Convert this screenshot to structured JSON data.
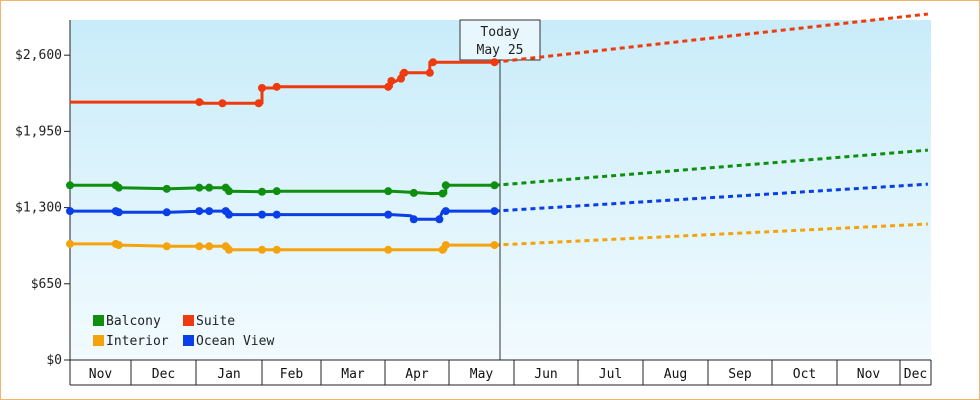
{
  "chart_data": {
    "type": "line",
    "title": "",
    "xlabel": "",
    "ylabel": "",
    "ylim": [
      0,
      2900
    ],
    "yticks": [
      "$0",
      "$650",
      "$1,300",
      "$1,950",
      "$2,600"
    ],
    "ytick_values": [
      0,
      650,
      1300,
      1950,
      2600
    ],
    "months": [
      "Nov",
      "Dec",
      "Jan",
      "Feb",
      "Mar",
      "Apr",
      "May",
      "Jun",
      "Jul",
      "Aug",
      "Sep",
      "Oct",
      "Nov",
      "Dec"
    ],
    "today": {
      "line1": "Today",
      "line2": "May 25"
    },
    "grid": false,
    "legend_position": "bottom-left",
    "series": [
      {
        "name": "Balcony",
        "color": "#0f8f0f",
        "points": [
          [
            0,
            1490
          ],
          [
            0.8,
            1490
          ],
          [
            0.8,
            1470
          ],
          [
            1.6,
            1460
          ],
          [
            2.1,
            1470
          ],
          [
            2.5,
            1470
          ],
          [
            2.5,
            1440
          ],
          [
            3.0,
            1435
          ],
          [
            3.25,
            1440
          ],
          [
            5.1,
            1440
          ],
          [
            5.4,
            1430
          ],
          [
            5.7,
            1420
          ],
          [
            5.95,
            1420
          ],
          [
            5.95,
            1490
          ],
          [
            6.7,
            1490
          ]
        ],
        "markers": [
          [
            0,
            1490
          ],
          [
            0.75,
            1490
          ],
          [
            0.8,
            1470
          ],
          [
            1.55,
            1460
          ],
          [
            2.05,
            1470
          ],
          [
            2.2,
            1470
          ],
          [
            2.45,
            1470
          ],
          [
            2.5,
            1440
          ],
          [
            3.0,
            1435
          ],
          [
            3.25,
            1440
          ],
          [
            5.05,
            1440
          ],
          [
            5.45,
            1425
          ],
          [
            5.9,
            1420
          ],
          [
            5.95,
            1490
          ],
          [
            6.7,
            1490
          ]
        ],
        "forecast": [
          [
            6.7,
            1490
          ],
          [
            13.9,
            1790
          ]
        ]
      },
      {
        "name": "Suite",
        "color": "#ee3a0c",
        "points": [
          [
            0,
            2200
          ],
          [
            2.1,
            2200
          ],
          [
            2.1,
            2190
          ],
          [
            2.6,
            2190
          ],
          [
            3.0,
            2190
          ],
          [
            3.0,
            2320
          ],
          [
            3.2,
            2320
          ],
          [
            3.25,
            2330
          ],
          [
            5.1,
            2330
          ],
          [
            5.1,
            2360
          ],
          [
            5.25,
            2400
          ],
          [
            5.25,
            2450
          ],
          [
            5.7,
            2450
          ],
          [
            5.7,
            2540
          ],
          [
            6.7,
            2540
          ]
        ],
        "markers": [
          [
            2.05,
            2200
          ],
          [
            2.4,
            2190
          ],
          [
            2.95,
            2190
          ],
          [
            3.0,
            2320
          ],
          [
            3.25,
            2330
          ],
          [
            5.05,
            2330
          ],
          [
            5.1,
            2380
          ],
          [
            5.25,
            2400
          ],
          [
            5.3,
            2450
          ],
          [
            5.7,
            2450
          ],
          [
            5.75,
            2540
          ],
          [
            6.7,
            2540
          ]
        ],
        "forecast": [
          [
            6.7,
            2540
          ],
          [
            13.9,
            3090
          ]
        ]
      },
      {
        "name": "Ocean View",
        "color": "#0a3ee6",
        "points": [
          [
            0,
            1270
          ],
          [
            0.8,
            1270
          ],
          [
            0.8,
            1260
          ],
          [
            1.6,
            1260
          ],
          [
            2.1,
            1270
          ],
          [
            2.5,
            1270
          ],
          [
            2.5,
            1240
          ],
          [
            3.0,
            1240
          ],
          [
            3.25,
            1240
          ],
          [
            5.1,
            1240
          ],
          [
            5.4,
            1230
          ],
          [
            5.5,
            1200
          ],
          [
            5.85,
            1200
          ],
          [
            5.9,
            1270
          ],
          [
            6.7,
            1270
          ]
        ],
        "markers": [
          [
            0,
            1270
          ],
          [
            0.75,
            1270
          ],
          [
            0.8,
            1260
          ],
          [
            1.55,
            1260
          ],
          [
            2.05,
            1270
          ],
          [
            2.2,
            1270
          ],
          [
            2.45,
            1270
          ],
          [
            2.5,
            1240
          ],
          [
            3.0,
            1240
          ],
          [
            3.25,
            1240
          ],
          [
            5.05,
            1240
          ],
          [
            5.45,
            1200
          ],
          [
            5.85,
            1200
          ],
          [
            5.95,
            1270
          ],
          [
            6.7,
            1270
          ]
        ],
        "forecast": [
          [
            6.7,
            1270
          ],
          [
            13.9,
            1500
          ]
        ]
      },
      {
        "name": "Interior",
        "color": "#f5a30c",
        "points": [
          [
            0,
            990
          ],
          [
            0.8,
            990
          ],
          [
            0.8,
            980
          ],
          [
            1.6,
            970
          ],
          [
            2.1,
            970
          ],
          [
            2.5,
            970
          ],
          [
            2.5,
            940
          ],
          [
            3.0,
            940
          ],
          [
            3.25,
            940
          ],
          [
            5.1,
            940
          ],
          [
            5.6,
            940
          ],
          [
            5.7,
            940
          ],
          [
            5.95,
            940
          ],
          [
            5.95,
            980
          ],
          [
            6.7,
            980
          ]
        ],
        "markers": [
          [
            0,
            990
          ],
          [
            0.75,
            990
          ],
          [
            0.8,
            980
          ],
          [
            1.55,
            970
          ],
          [
            2.05,
            970
          ],
          [
            2.2,
            970
          ],
          [
            2.45,
            970
          ],
          [
            2.5,
            940
          ],
          [
            3.0,
            940
          ],
          [
            3.25,
            940
          ],
          [
            5.05,
            940
          ],
          [
            5.9,
            940
          ],
          [
            5.95,
            980
          ],
          [
            6.7,
            980
          ]
        ],
        "forecast": [
          [
            6.7,
            980
          ],
          [
            13.9,
            1160
          ]
        ]
      }
    ]
  }
}
